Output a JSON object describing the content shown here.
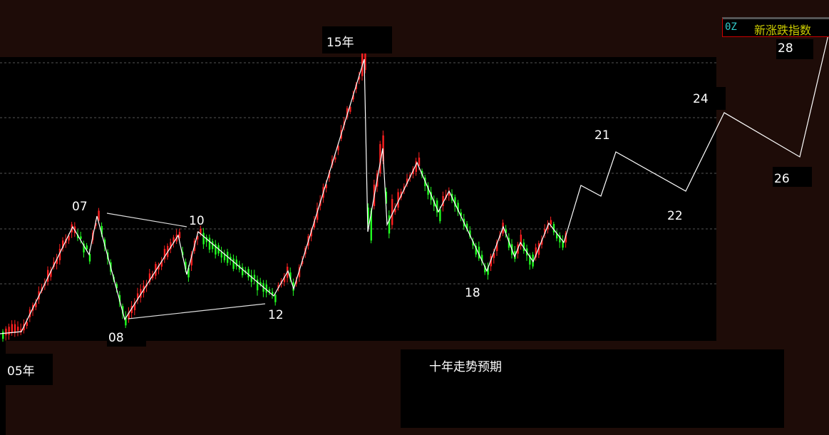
{
  "legend": {
    "code": "0Z",
    "name": "新涨跌指数",
    "code_color": "#33cccc",
    "name_color": "#cccc00"
  },
  "annotations": {
    "y05": "05年",
    "y07": "07",
    "y08": "08",
    "y10": "10",
    "y12": "12",
    "y15": "15年",
    "y18": "18",
    "y21": "21",
    "y22": "22",
    "y24": "24",
    "y26": "26",
    "y28": "28"
  },
  "note": "十年走势预期",
  "chart_data": {
    "type": "candlestick",
    "title": "",
    "grid": true,
    "up_color": "#ff2020",
    "down_color": "#20ff20",
    "overlay": "white zigzag wave lines with forecast projection",
    "wave_labels": [
      "05年",
      "07",
      "08",
      "10",
      "12",
      "15年",
      "18",
      "21",
      "22",
      "24",
      "26",
      "28"
    ]
  }
}
